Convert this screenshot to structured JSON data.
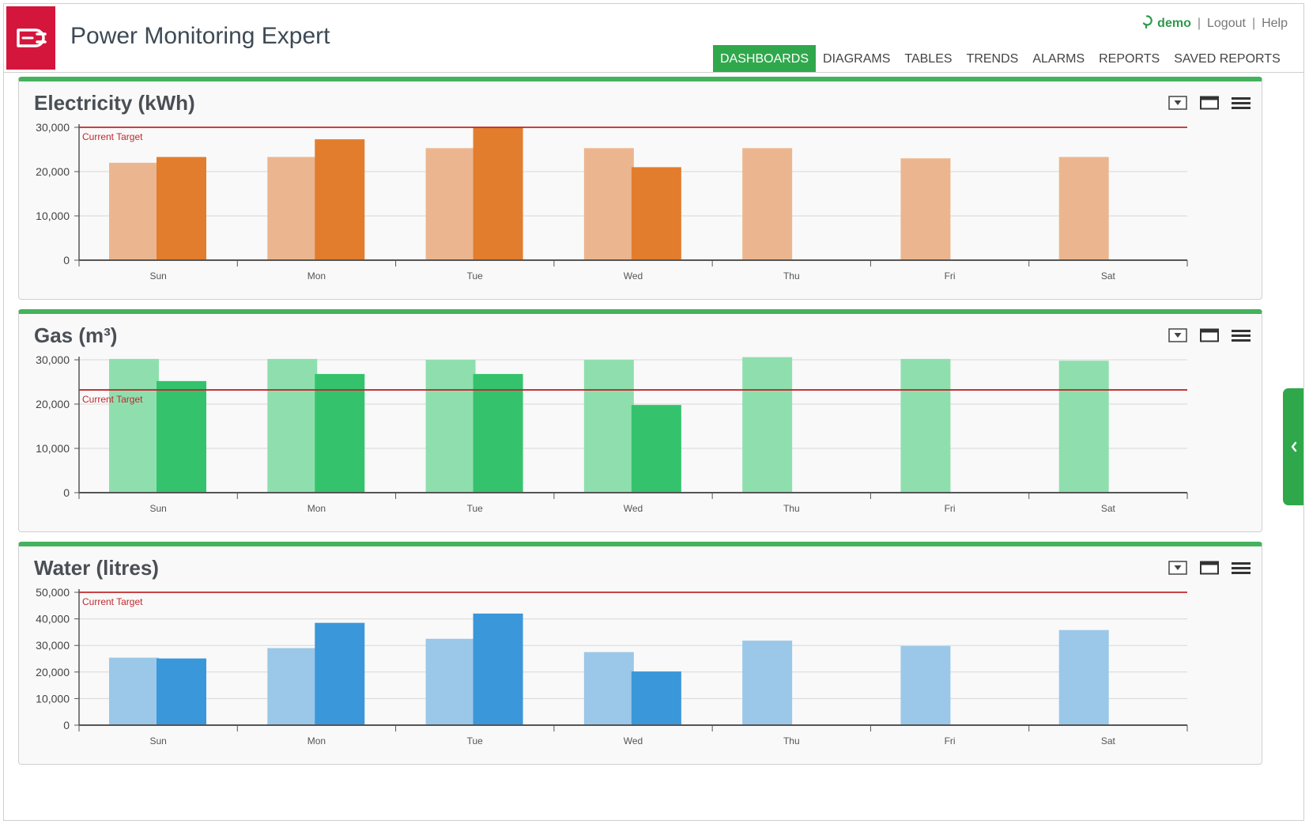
{
  "header": {
    "app_title": "Power Monitoring Expert",
    "logo_icon": "plug-logo-icon",
    "user_name": "demo",
    "logout_label": "Logout",
    "help_label": "Help"
  },
  "nav": {
    "tabs": [
      {
        "label": "DASHBOARDS",
        "active": true
      },
      {
        "label": "DIAGRAMS",
        "active": false
      },
      {
        "label": "TABLES",
        "active": false
      },
      {
        "label": "TRENDS",
        "active": false
      },
      {
        "label": "ALARMS",
        "active": false
      },
      {
        "label": "REPORTS",
        "active": false
      },
      {
        "label": "SAVED REPORTS",
        "active": false
      }
    ]
  },
  "colors": {
    "accent": "#2fa84c",
    "brand": "#d4163c",
    "target_line": "#c0282d"
  },
  "chart_data": [
    {
      "type": "bar",
      "title": "Electricity (kWh)",
      "categories": [
        "Sun",
        "Mon",
        "Tue",
        "Wed",
        "Thu",
        "Fri",
        "Sat"
      ],
      "yticks": [
        "0",
        "10,000",
        "20,000",
        "30,000"
      ],
      "ylim": [
        0,
        30000
      ],
      "target": {
        "label": "Current Target",
        "value": 30000
      },
      "colors": [
        "#ebb68f",
        "#e27d2e"
      ],
      "series": [
        {
          "values": [
            22000,
            23300,
            25300,
            25300,
            25300,
            23000,
            23300
          ]
        },
        {
          "values": [
            23300,
            27300,
            30000,
            21000,
            null,
            null,
            null
          ]
        }
      ]
    },
    {
      "type": "bar",
      "title": "Gas (m³)",
      "categories": [
        "Sun",
        "Mon",
        "Tue",
        "Wed",
        "Thu",
        "Fri",
        "Sat"
      ],
      "yticks": [
        "0",
        "10,000",
        "20,000",
        "30,000"
      ],
      "ylim": [
        0,
        30000
      ],
      "target": {
        "label": "Current Target",
        "value": 23200
      },
      "colors": [
        "#8fdfae",
        "#34c36c"
      ],
      "series": [
        {
          "values": [
            30200,
            30200,
            30000,
            30000,
            30600,
            30200,
            29800
          ]
        },
        {
          "values": [
            25200,
            26800,
            26800,
            19800,
            null,
            null,
            null
          ]
        }
      ]
    },
    {
      "type": "bar",
      "title": "Water (litres)",
      "categories": [
        "Sun",
        "Mon",
        "Tue",
        "Wed",
        "Thu",
        "Fri",
        "Sat"
      ],
      "yticks": [
        "0",
        "10,000",
        "20,000",
        "30,000",
        "40,000",
        "50,000"
      ],
      "ylim": [
        0,
        50000
      ],
      "target": {
        "label": "Current Target",
        "value": 50000
      },
      "colors": [
        "#9bc8e8",
        "#3a97d9"
      ],
      "series": [
        {
          "values": [
            25400,
            29000,
            32500,
            27500,
            31800,
            29800,
            35800
          ]
        },
        {
          "values": [
            25100,
            38500,
            42000,
            20200,
            null,
            null,
            null
          ]
        }
      ]
    }
  ]
}
